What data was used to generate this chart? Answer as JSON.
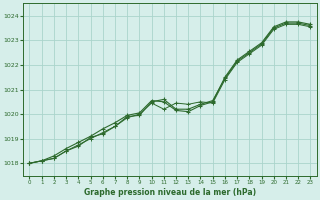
{
  "title": "Graphe pression niveau de la mer (hPa)",
  "background_color": "#d6eeea",
  "grid_color": "#aad4cc",
  "line_color": "#2d6a2d",
  "marker_color": "#2d6a2d",
  "xlim": [
    -0.5,
    23.5
  ],
  "ylim": [
    1017.5,
    1024.5
  ],
  "yticks": [
    1018,
    1019,
    1020,
    1021,
    1022,
    1023,
    1024
  ],
  "xticks": [
    0,
    1,
    2,
    3,
    4,
    5,
    6,
    7,
    8,
    9,
    10,
    11,
    12,
    13,
    14,
    15,
    16,
    17,
    18,
    19,
    20,
    21,
    22,
    23
  ],
  "series1": [
    1018.0,
    1018.1,
    1018.2,
    1018.5,
    1018.7,
    1019.05,
    1019.2,
    1019.5,
    1019.9,
    1019.95,
    1020.5,
    1020.6,
    1020.2,
    1020.2,
    1020.4,
    1020.55,
    1021.45,
    1022.15,
    1022.5,
    1022.85,
    1023.5,
    1023.7,
    1023.7,
    1023.6
  ],
  "series2": [
    1018.0,
    1018.1,
    1018.3,
    1018.6,
    1018.85,
    1019.1,
    1019.4,
    1019.65,
    1019.95,
    1020.05,
    1020.55,
    1020.5,
    1020.15,
    1020.1,
    1020.35,
    1020.5,
    1021.5,
    1022.2,
    1022.55,
    1022.9,
    1023.55,
    1023.75,
    1023.75,
    1023.65
  ],
  "series3": [
    1018.0,
    1018.1,
    1018.25,
    1018.55,
    1018.8,
    1018.85,
    1019.25,
    1019.5,
    1019.85,
    1020.0,
    1020.45,
    1020.2,
    1020.5,
    1020.45,
    1020.6,
    1020.55,
    1021.45,
    1022.1,
    1022.45,
    1022.8,
    1023.45,
    1023.7,
    1023.65,
    1023.6
  ]
}
